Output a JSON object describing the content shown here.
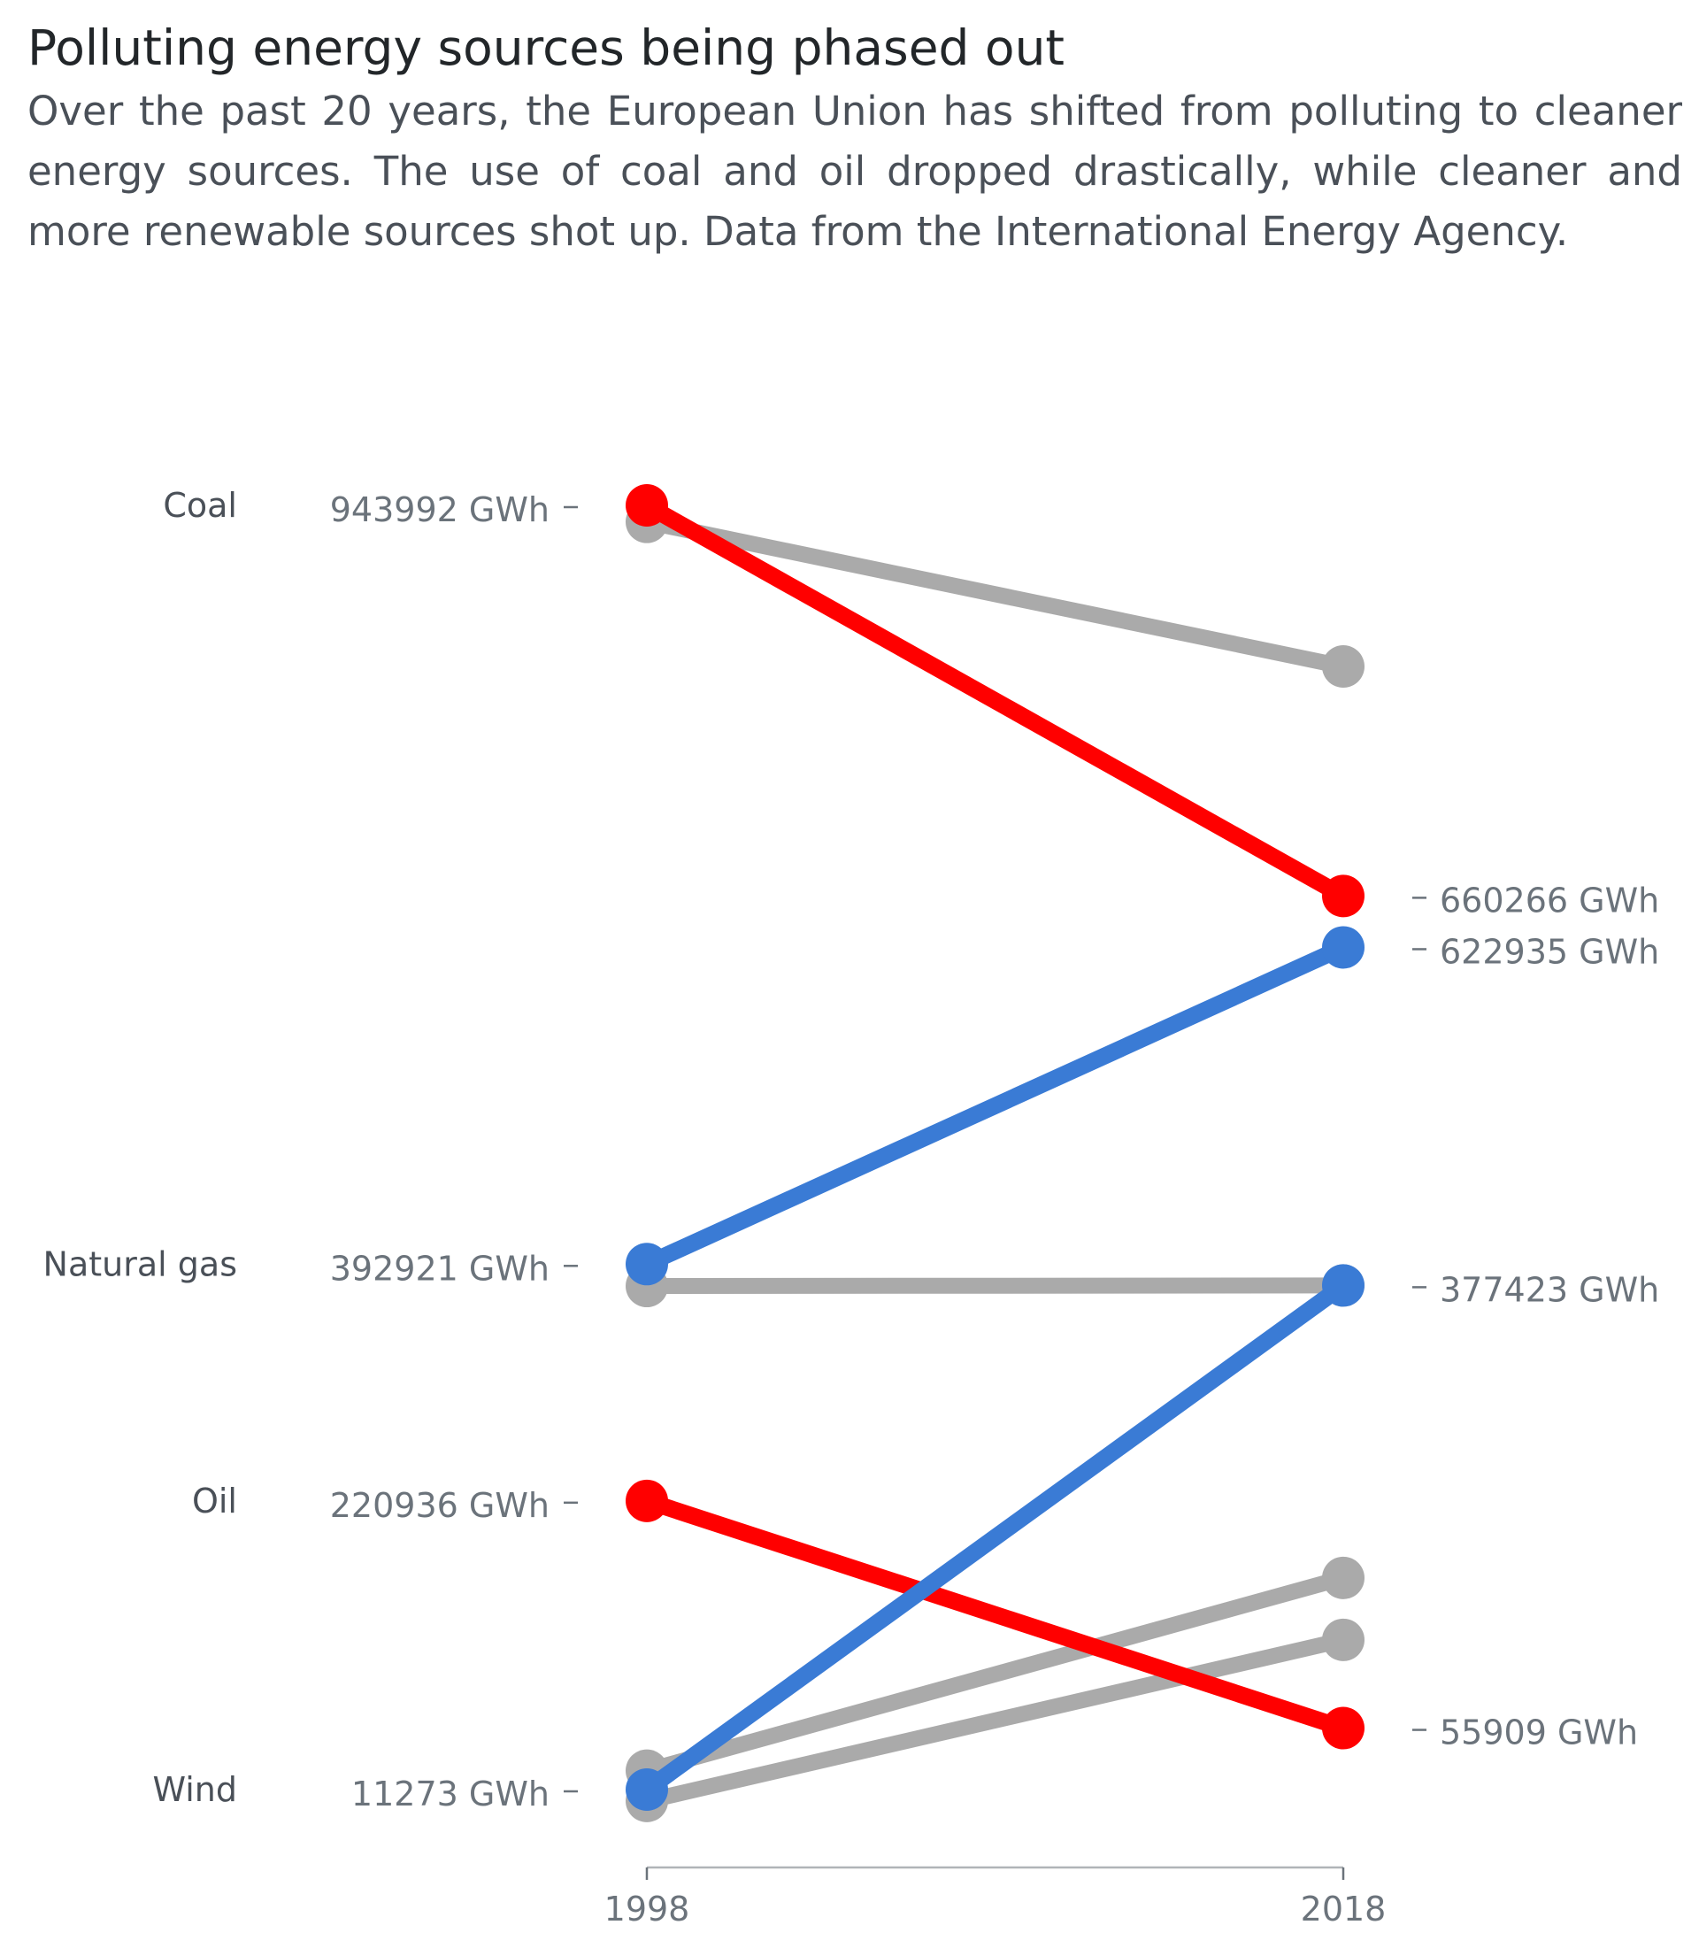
{
  "title": "Polluting energy sources being phased out",
  "subtitle": "Over the past 20 years, the European Union has shifted from polluting to cleaner energy sources. The use of coal and oil dropped drastically, while cleaner and more renewable sources shot up. Data from the International Energy Agency.",
  "colors": {
    "decline": "#ff0000",
    "growth": "#3a7bd5",
    "other": "#aaaaaa"
  },
  "chart_data": {
    "type": "line",
    "title": "Polluting energy sources being phased out",
    "x": [
      "1998",
      "2018"
    ],
    "y_unit": "GWh",
    "ylim": [
      11273,
      943992
    ],
    "grid": false,
    "series": [
      {
        "name": "Coal",
        "values": [
          943992,
          660266
        ],
        "highlight": "decline",
        "start_label": "943992 GWh",
        "end_label": "660266 GWh"
      },
      {
        "name": "Natural gas",
        "values": [
          392921,
          622935
        ],
        "highlight": "growth",
        "start_label": "392921 GWh",
        "end_label": "622935 GWh"
      },
      {
        "name": "Oil",
        "values": [
          220936,
          55909
        ],
        "highlight": "decline",
        "start_label": "220936 GWh",
        "end_label": "55909 GWh"
      },
      {
        "name": "Wind",
        "values": [
          11273,
          377423
        ],
        "highlight": "growth",
        "start_label": "11273 GWh",
        "end_label": "377423 GWh"
      },
      {
        "values": [
          932000,
          827000
        ],
        "highlight": "other"
      },
      {
        "values": [
          377000,
          377423
        ],
        "highlight": "other"
      },
      {
        "values": [
          25000,
          165000
        ],
        "highlight": "other"
      },
      {
        "values": [
          3000,
          120000
        ],
        "highlight": "other"
      }
    ]
  }
}
